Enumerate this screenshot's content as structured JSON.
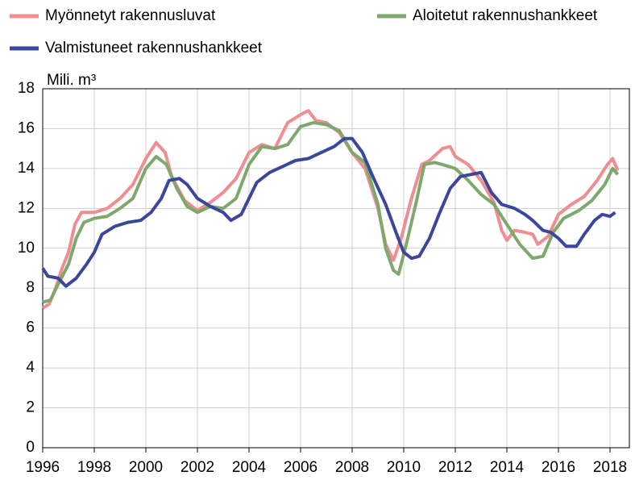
{
  "chart_data": {
    "type": "line",
    "y_label": "Mili. m³",
    "xlim": [
      1996,
      2018.75
    ],
    "xticks": [
      1996,
      1998,
      2000,
      2002,
      2004,
      2006,
      2008,
      2010,
      2012,
      2014,
      2016,
      2018
    ],
    "ylim": [
      0,
      18
    ],
    "yticks": [
      0,
      2,
      4,
      6,
      8,
      10,
      12,
      14,
      16,
      18
    ],
    "grid": true,
    "legend": "top",
    "series": [
      {
        "name": "Myönnetyt rakennusluvat",
        "color": "#ef8d90",
        "x": [
          1996,
          1996.25,
          1996.5,
          1996.75,
          1997,
          1997.25,
          1997.5,
          1998,
          1998.5,
          1999,
          1999.5,
          2000,
          2000.4,
          2000.75,
          2001,
          2001.5,
          2002,
          2002.5,
          2003,
          2003.5,
          2004,
          2004.5,
          2005,
          2005.5,
          2006,
          2006.3,
          2006.6,
          2007,
          2007.5,
          2008,
          2008.5,
          2009,
          2009.3,
          2009.6,
          2009.9,
          2010.3,
          2010.7,
          2011,
          2011.5,
          2011.8,
          2012,
          2012.5,
          2013,
          2013.5,
          2013.8,
          2014,
          2014.3,
          2014.7,
          2015,
          2015.2,
          2015.6,
          2016,
          2016.5,
          2017,
          2017.5,
          2017.9,
          2018.1,
          2018.3
        ],
        "values": [
          7.0,
          7.2,
          8.0,
          9.0,
          9.8,
          11.2,
          11.8,
          11.8,
          12.0,
          12.5,
          13.2,
          14.5,
          15.3,
          14.8,
          13.6,
          12.4,
          11.9,
          12.3,
          12.8,
          13.5,
          14.8,
          15.2,
          15.0,
          16.3,
          16.7,
          16.9,
          16.4,
          16.3,
          15.8,
          14.8,
          14.0,
          12.0,
          10.2,
          9.4,
          10.5,
          12.5,
          14.2,
          14.4,
          15.0,
          15.1,
          14.6,
          14.2,
          13.4,
          12.3,
          10.9,
          10.4,
          10.9,
          10.8,
          10.7,
          10.2,
          10.6,
          11.7,
          12.2,
          12.6,
          13.4,
          14.2,
          14.5,
          13.9
        ]
      },
      {
        "name": "Aloitetut rakennushankkeet",
        "color": "#7fa86d",
        "x": [
          1996,
          1996.3,
          1996.6,
          1997,
          1997.3,
          1997.6,
          1998,
          1998.5,
          1999,
          1999.5,
          2000,
          2000.4,
          2000.8,
          2001.2,
          2001.6,
          2002,
          2002.5,
          2003,
          2003.5,
          2004,
          2004.5,
          2005,
          2005.5,
          2006,
          2006.5,
          2007,
          2007.5,
          2008,
          2008.5,
          2009,
          2009.3,
          2009.6,
          2009.8,
          2010.1,
          2010.5,
          2010.8,
          2011.2,
          2011.5,
          2012,
          2012.5,
          2013,
          2013.5,
          2014,
          2014.5,
          2015,
          2015.4,
          2015.8,
          2016.2,
          2016.8,
          2017.3,
          2017.8,
          2018.1,
          2018.3
        ],
        "values": [
          7.3,
          7.4,
          8.2,
          9.2,
          10.5,
          11.3,
          11.5,
          11.6,
          12.0,
          12.5,
          14.0,
          14.6,
          14.2,
          13.0,
          12.1,
          11.8,
          12.1,
          12.0,
          12.5,
          14.2,
          15.1,
          15.0,
          15.2,
          16.1,
          16.3,
          16.2,
          15.9,
          14.8,
          14.3,
          12.2,
          10.0,
          8.9,
          8.7,
          10.2,
          12.4,
          14.2,
          14.3,
          14.2,
          14.0,
          13.4,
          12.7,
          12.2,
          11.2,
          10.2,
          9.5,
          9.6,
          10.8,
          11.5,
          11.9,
          12.4,
          13.2,
          14.0,
          13.7
        ]
      },
      {
        "name": "Valmistuneet rakennushankkeet",
        "color": "#3b479c",
        "x": [
          1996,
          1996.2,
          1996.6,
          1996.9,
          1997.3,
          1997.7,
          1998,
          1998.3,
          1998.8,
          1999.3,
          1999.8,
          2000.2,
          2000.6,
          2000.9,
          2001.3,
          2001.6,
          2002,
          2002.5,
          2003,
          2003.3,
          2003.7,
          2004,
          2004.3,
          2004.8,
          2005.3,
          2005.8,
          2006.3,
          2006.8,
          2007.3,
          2007.7,
          2008,
          2008.4,
          2008.8,
          2009.3,
          2009.7,
          2010,
          2010.3,
          2010.6,
          2011,
          2011.4,
          2011.8,
          2012.2,
          2012.6,
          2013,
          2013.4,
          2013.8,
          2014.3,
          2014.7,
          2015,
          2015.4,
          2015.7,
          2016,
          2016.3,
          2016.7,
          2017,
          2017.4,
          2017.7,
          2018,
          2018.2
        ],
        "values": [
          9.0,
          8.6,
          8.5,
          8.1,
          8.5,
          9.2,
          9.8,
          10.7,
          11.1,
          11.3,
          11.4,
          11.8,
          12.5,
          13.4,
          13.5,
          13.2,
          12.5,
          12.1,
          11.8,
          11.4,
          11.7,
          12.5,
          13.3,
          13.8,
          14.1,
          14.4,
          14.5,
          14.8,
          15.1,
          15.5,
          15.5,
          14.8,
          13.6,
          12.2,
          10.8,
          9.8,
          9.5,
          9.6,
          10.5,
          11.8,
          13.0,
          13.6,
          13.7,
          13.8,
          12.8,
          12.2,
          12.0,
          11.7,
          11.4,
          10.9,
          10.8,
          10.5,
          10.1,
          10.1,
          10.7,
          11.4,
          11.7,
          11.6,
          11.8
        ]
      }
    ]
  }
}
